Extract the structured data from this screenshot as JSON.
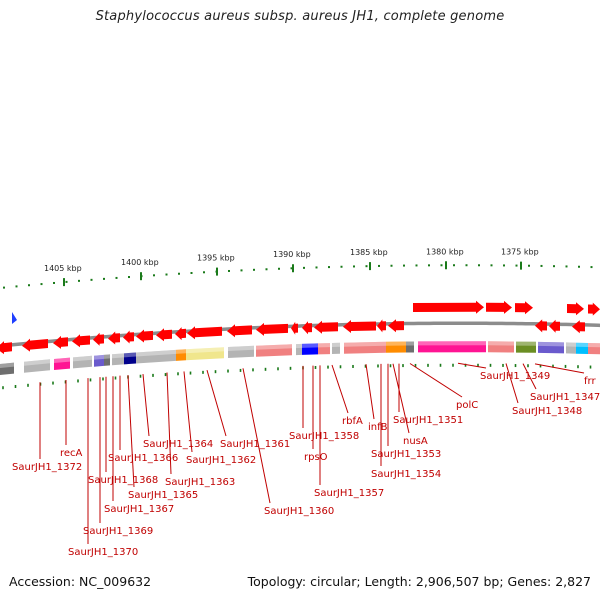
{
  "title": "Staphylococcus aureus subsp. aureus JH1, complete genome",
  "footer": {
    "accession": "Accession: NC_009632",
    "summary": "Topology: circular; Length: 2,906,507 bp; Genes: 2,827"
  },
  "scale_labels": [
    "1405 kbp",
    "1400 kbp",
    "1395 kbp",
    "1390 kbp",
    "1385 kbp",
    "1380 kbp",
    "1375 kbp"
  ],
  "gene_labels": [
    "SaurJH1_1372",
    "recA",
    "SaurJH1_1370",
    "SaurJH1_1369",
    "SaurJH1_1368",
    "SaurJH1_1367",
    "SaurJH1_1366",
    "SaurJH1_1365",
    "SaurJH1_1364",
    "SaurJH1_1363",
    "SaurJH1_1362",
    "SaurJH1_1361",
    "SaurJH1_1360",
    "SaurJH1_1358",
    "rpsO",
    "SaurJH1_1357",
    "rbfA",
    "infB",
    "SaurJH1_1354",
    "SaurJH1_1353",
    "nusA",
    "SaurJH1_1351",
    "polC",
    "SaurJH1_1349",
    "SaurJH1_1348",
    "SaurJH1_1347",
    "frr"
  ],
  "colors": {
    "gene": "#ff0000",
    "label": "#c00000",
    "backbone": "#8c8c8c",
    "tick": "#1a7a1a",
    "cog_gray": "#b4b4b4",
    "cog_dark": "#6e6e6e",
    "cog_pink": "#ff1493",
    "cog_salmon": "#f08080",
    "cog_purple": "#6a5acd",
    "cog_blue": "#0000ff",
    "cog_orange": "#ff8c00",
    "cog_yellow": "#f0e68c",
    "cog_olive": "#6b8e23",
    "cog_cyan": "#00bfff"
  }
}
